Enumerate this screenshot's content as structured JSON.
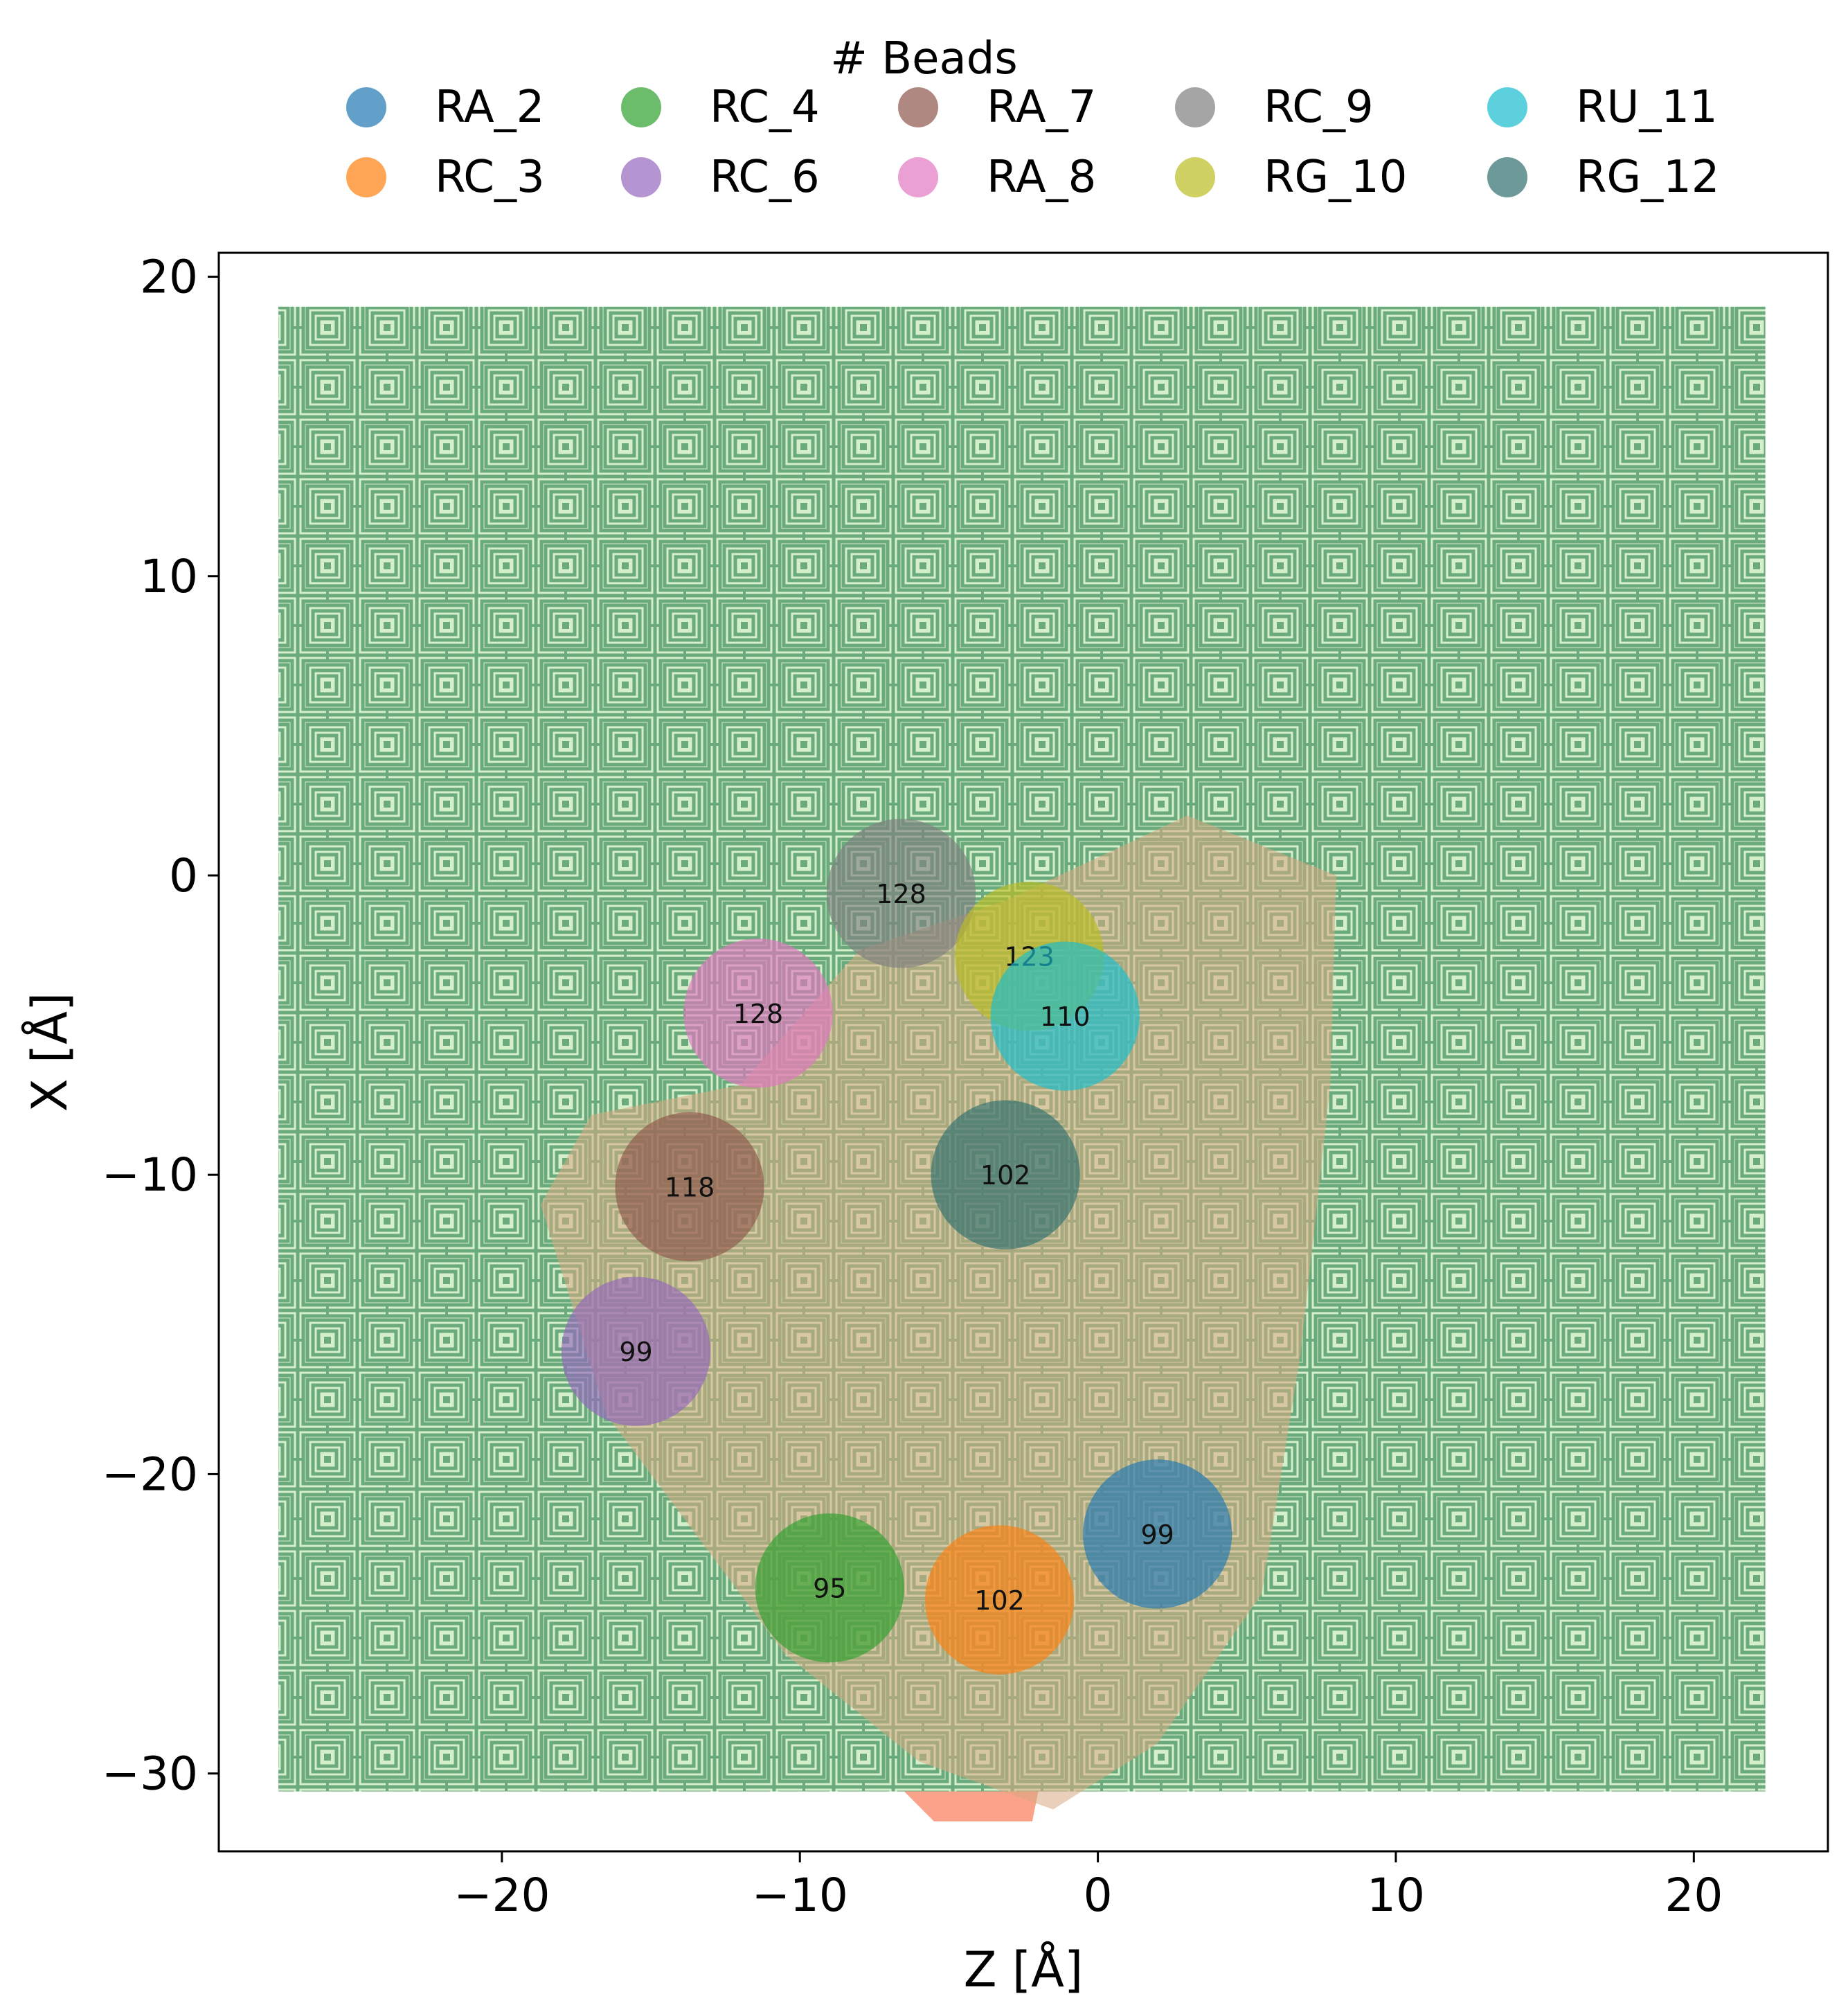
{
  "chart_data": {
    "type": "scatter",
    "title": "",
    "xlabel": "Z [Å]",
    "ylabel": "X [Å]",
    "xlim": [
      -29.5,
      24.5
    ],
    "ylim": [
      -32.6,
      20.8
    ],
    "xticks": [
      -20,
      -10,
      0,
      10,
      20
    ],
    "yticks": [
      20,
      10,
      0,
      -10,
      -20,
      -30
    ],
    "xtick_labels": [
      "−20",
      "−10",
      "0",
      "10",
      "20"
    ],
    "ytick_labels": [
      "20",
      "10",
      "0",
      "−10",
      "−20",
      "−30"
    ],
    "grid": false,
    "legend": {
      "title": "# Beads",
      "placement": "top-center",
      "columns": 6
    },
    "background": {
      "xrange": [
        -27.5,
        22.4
      ],
      "yrange": [
        -30.6,
        19
      ],
      "color": "#6aaa7c",
      "light": "#d4efca"
    },
    "density_region": {
      "color": "#d8a882",
      "points": [
        [
          -12,
          -7
        ],
        [
          -8,
          -2.5
        ],
        [
          -3,
          -0.8
        ],
        [
          3,
          2
        ],
        [
          8,
          0
        ],
        [
          7.8,
          -7
        ],
        [
          6.8,
          -16
        ],
        [
          5.5,
          -24
        ],
        [
          2,
          -29
        ],
        [
          -1.5,
          -31.2
        ],
        [
          -6,
          -29.6
        ],
        [
          -10.5,
          -26
        ],
        [
          -13.5,
          -22
        ],
        [
          -16.5,
          -18
        ],
        [
          -18.7,
          -11
        ],
        [
          -17,
          -8
        ]
      ]
    },
    "tail": {
      "color": "#fa9e84",
      "points": [
        [
          -6.5,
          -30.6
        ],
        [
          -2,
          -30.6
        ],
        [
          -2.2,
          -31.6
        ],
        [
          -5.5,
          -31.6
        ]
      ]
    },
    "series": [
      {
        "name": "RA_2",
        "color": "#1f77b4",
        "x": 2.0,
        "y": -22.0,
        "label": "99"
      },
      {
        "name": "RC_3",
        "color": "#ff7f0e",
        "x": -3.3,
        "y": -24.2,
        "label": "102"
      },
      {
        "name": "RC_4",
        "color": "#2ca02c",
        "x": -9.0,
        "y": -23.8,
        "label": "95"
      },
      {
        "name": "RC_6",
        "color": "#9467bd",
        "x": -15.5,
        "y": -15.9,
        "label": "99"
      },
      {
        "name": "RA_7",
        "color": "#8c564b",
        "x": -13.7,
        "y": -10.4,
        "label": "118"
      },
      {
        "name": "RA_8",
        "color": "#e377c2",
        "x": -11.4,
        "y": -4.6,
        "label": "128"
      },
      {
        "name": "RC_9",
        "color": "#7f7f7f",
        "x": -6.6,
        "y": -0.6,
        "label": "128"
      },
      {
        "name": "RG_10",
        "color": "#bcbd22",
        "x": -2.3,
        "y": -2.7,
        "label": "123"
      },
      {
        "name": "RU_11",
        "color": "#17becf",
        "x": -1.1,
        "y": -4.7,
        "label": "110"
      },
      {
        "name": "RG_12",
        "color": "#2f6e6e",
        "x": -3.1,
        "y": -10.0,
        "label": "102"
      }
    ]
  }
}
